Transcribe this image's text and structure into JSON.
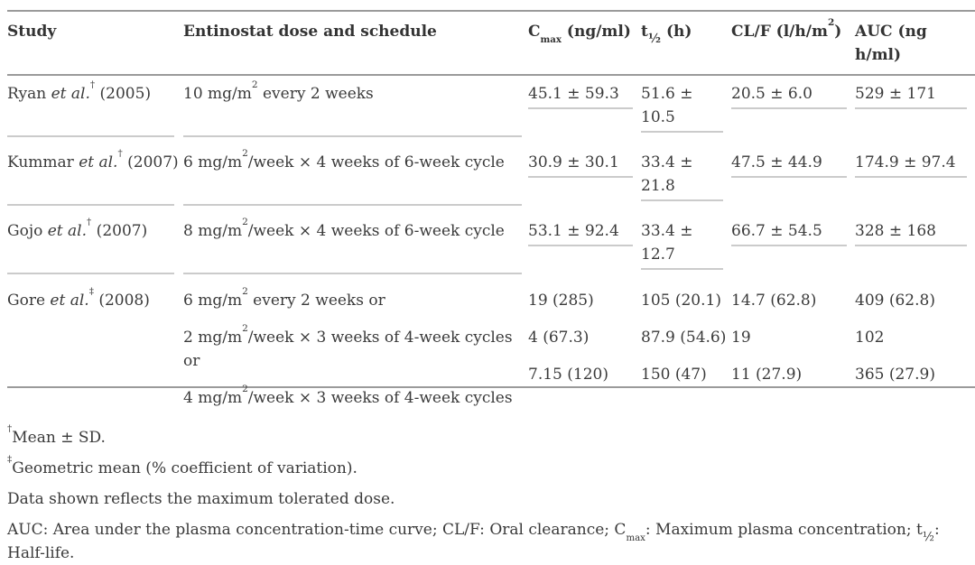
{
  "palette": {
    "background": "#ffffff",
    "text": "#3a3a3a",
    "heading_text": "#333333",
    "border_strong": "#9a9a9a",
    "border_light": "#cbcbcb"
  },
  "table": {
    "headers": {
      "study": "Study",
      "dose": "Entinostat dose and schedule",
      "cmax": {
        "pre": "C",
        "sub": "max",
        "post": " (ng/ml)"
      },
      "thalf": {
        "pre": "t",
        "sub": "½",
        "post": " (h)"
      },
      "clf": {
        "pre": "CL/F (l/h/m",
        "sup": "2",
        "post": ")"
      },
      "auc": "AUC (ng h/ml)"
    },
    "rows": [
      {
        "study": {
          "name": "Ryan ",
          "etal": "et al.",
          "marker": "†",
          "year": " (2005)"
        },
        "doses": [
          {
            "pre": "10 mg/m",
            "sup": "2",
            "post": " every 2 weeks"
          }
        ],
        "cmax": [
          "45.1 ± 59.3"
        ],
        "thalf": [
          "51.6 ± 10.5"
        ],
        "clf": [
          "20.5 ± 6.0"
        ],
        "auc": [
          "529 ± 171"
        ]
      },
      {
        "study": {
          "name": "Kummar ",
          "etal": "et al.",
          "marker": "†",
          "year": " (2007)"
        },
        "doses": [
          {
            "pre": "6 mg/m",
            "sup": "2",
            "post": "/week × 4 weeks of 6-week cycle"
          }
        ],
        "cmax": [
          "30.9 ± 30.1"
        ],
        "thalf": [
          "33.4 ± 21.8"
        ],
        "clf": [
          "47.5 ± 44.9"
        ],
        "auc": [
          "174.9 ± 97.4"
        ]
      },
      {
        "study": {
          "name": "Gojo ",
          "etal": "et al.",
          "marker": "†",
          "year": " (2007)"
        },
        "doses": [
          {
            "pre": "8 mg/m",
            "sup": "2",
            "post": "/week × 4 weeks of 6-week cycle"
          }
        ],
        "cmax": [
          "53.1 ± 92.4"
        ],
        "thalf": [
          "33.4 ± 12.7"
        ],
        "clf": [
          "66.7 ± 54.5"
        ],
        "auc": [
          "328 ± 168"
        ]
      },
      {
        "study": {
          "name": "Gore ",
          "etal": "et al.",
          "marker": "‡",
          "year": " (2008)"
        },
        "doses": [
          {
            "pre": "6 mg/m",
            "sup": "2",
            "post": " every 2 weeks or"
          },
          {
            "pre": "2 mg/m",
            "sup": "2",
            "post": "/week × 3 weeks of 4-week cycles or"
          },
          {
            "pre": "4 mg/m",
            "sup": "2",
            "post": "/week × 3 weeks of 4-week cycles"
          }
        ],
        "cmax": [
          "19 (285)",
          "4 (67.3)",
          "7.15 (120)"
        ],
        "thalf": [
          "105 (20.1)",
          "87.9 (54.6)",
          "150 (47)"
        ],
        "clf": [
          "14.7 (62.8)",
          "19",
          "11 (27.9)"
        ],
        "auc": [
          "409 (62.8)",
          "102",
          "365 (27.9)"
        ]
      }
    ]
  },
  "footnotes": {
    "f1": {
      "marker": "†",
      "text": "Mean ± SD."
    },
    "f2": {
      "marker": "‡",
      "text": "Geometric mean (% coefficient of variation)."
    },
    "f3": "Data shown reflects the maximum tolerated dose.",
    "f4": {
      "p1": "AUC: Area under the plasma concentration-time curve; CL/F: Oral clearance; C",
      "sub1": "max",
      "p2": ": Maximum plasma concentration; t",
      "sub2": "½",
      "p3": ": Half-life."
    }
  }
}
